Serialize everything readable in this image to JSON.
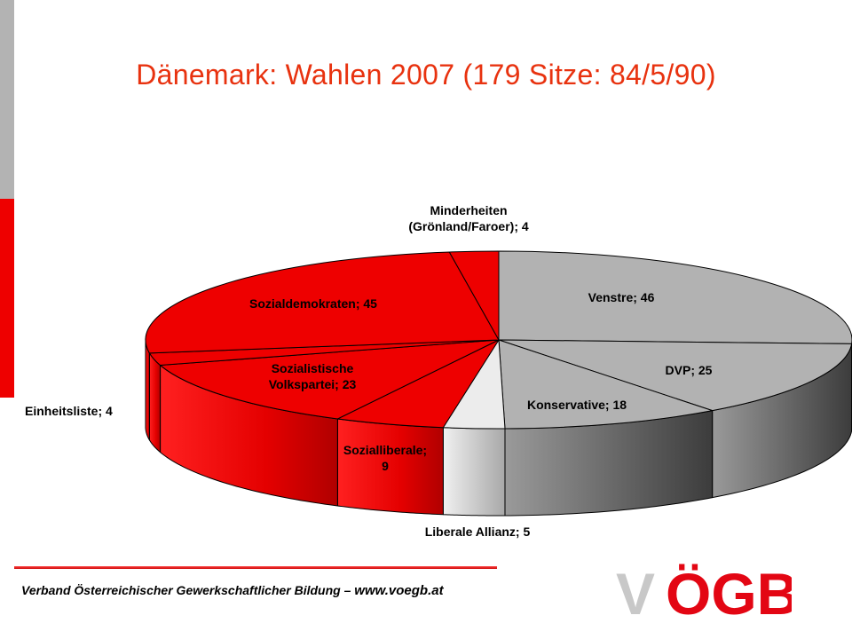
{
  "slide": {
    "title": "Dänemark: Wahlen 2007 (179 Sitze: 84/5/90)",
    "footer_text": "Verband Österreichischer Gewerkschaftlicher Bildung – ",
    "footer_url": "www.voegb.at",
    "logo_text": "VÖGB"
  },
  "chart_data": {
    "type": "pie",
    "title": "",
    "total": 179,
    "slices": [
      {
        "name": "Venstre",
        "value": 46,
        "label_lines": [
          "Venstre; 46"
        ],
        "color": "#b2b2b2"
      },
      {
        "name": "DVP",
        "value": 25,
        "label_lines": [
          "DVP; 25"
        ],
        "color": "#b2b2b2"
      },
      {
        "name": "Konservative",
        "value": 18,
        "label_lines": [
          "Konservative; 18"
        ],
        "color": "#b2b2b2"
      },
      {
        "name": "Liberale Allianz",
        "value": 5,
        "label_lines": [
          "Liberale Allianz; 5"
        ],
        "color": "#ececec"
      },
      {
        "name": "Socialliberale",
        "value": 9,
        "label_lines": [
          "Sozialliberale;",
          "9"
        ],
        "color": "#ee0000"
      },
      {
        "name": "Sozialistische Volkspartei",
        "value": 23,
        "label_lines": [
          "Sozialistische",
          "Volkspartei; 23"
        ],
        "color": "#ee0000"
      },
      {
        "name": "Einheitsliste",
        "value": 4,
        "label_lines": [
          "Einheitsliste; 4"
        ],
        "color": "#ee0000"
      },
      {
        "name": "Sozialdemokraten",
        "value": 45,
        "label_lines": [
          "Sozialdemokraten; 45"
        ],
        "color": "#ee0000"
      },
      {
        "name": "Minderheiten (Grönland/Faroer)",
        "value": 4,
        "label_lines": [
          "Minderheiten",
          "(Grönland/Faroer); 4"
        ],
        "color": "#ee0000"
      }
    ],
    "colors": {
      "red": "#ee0000",
      "gray": "#b2b2b2",
      "light": "#ececec"
    }
  }
}
